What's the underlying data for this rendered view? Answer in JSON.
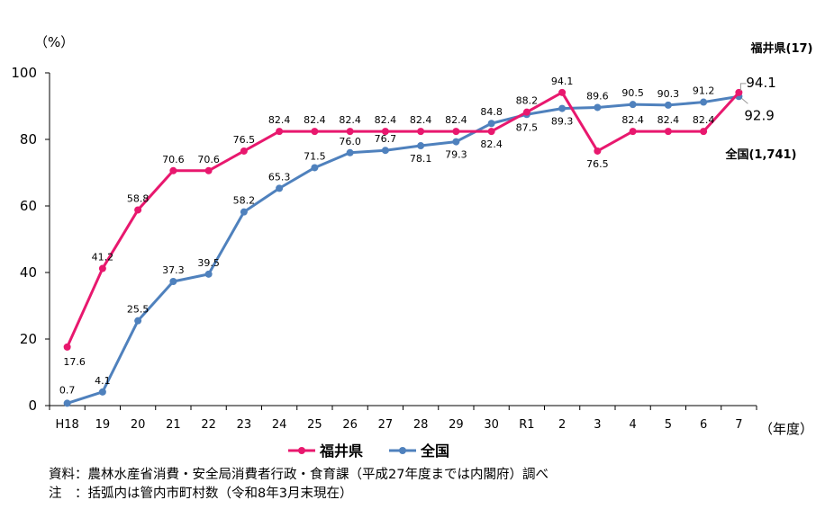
{
  "chart_data": {
    "type": "line",
    "y_unit": "（%）",
    "x_unit": "（年度）",
    "ylim": [
      0,
      100
    ],
    "yticks": [
      0,
      20,
      40,
      60,
      80,
      100
    ],
    "categories": [
      "H18",
      "19",
      "20",
      "21",
      "22",
      "23",
      "24",
      "25",
      "26",
      "27",
      "28",
      "29",
      "30",
      "R1",
      "2",
      "3",
      "4",
      "5",
      "6",
      "7"
    ],
    "grid": false,
    "legend_position": "bottom",
    "series": [
      {
        "name": "福井県",
        "color": "#e8186e",
        "end_label": "福井県(17)",
        "values": [
          17.6,
          41.2,
          58.8,
          70.6,
          70.6,
          76.5,
          82.4,
          82.4,
          82.4,
          82.4,
          82.4,
          82.4,
          82.4,
          88.2,
          94.1,
          76.5,
          82.4,
          82.4,
          82.4,
          94.1
        ],
        "label_positions": [
          "below",
          "above",
          "above",
          "above",
          "above",
          "above",
          "above",
          "above",
          "above",
          "above",
          "above",
          "above",
          "below",
          "above",
          "above",
          "below",
          "above",
          "above",
          "above",
          "right"
        ]
      },
      {
        "name": "全国",
        "color": "#4f81bd",
        "end_label": "全国(1,741)",
        "values": [
          0.7,
          4.1,
          25.5,
          37.3,
          39.5,
          58.2,
          65.3,
          71.5,
          76.0,
          76.7,
          78.1,
          79.3,
          84.8,
          87.5,
          89.3,
          89.6,
          90.5,
          90.3,
          91.2,
          92.9
        ],
        "label_positions": [
          "above",
          "above",
          "above",
          "above",
          "above",
          "above",
          "above",
          "above",
          "above",
          "above",
          "below",
          "below",
          "above",
          "below",
          "below",
          "above",
          "above",
          "above",
          "above",
          "below-right"
        ]
      }
    ]
  },
  "notes": {
    "source": "資料：農林水産省消費・安全局消費者行政・食育課（平成27年度までは内閣府）調べ",
    "note": "注　：括弧内は管内市町村数（令和8年3月末現在）"
  }
}
